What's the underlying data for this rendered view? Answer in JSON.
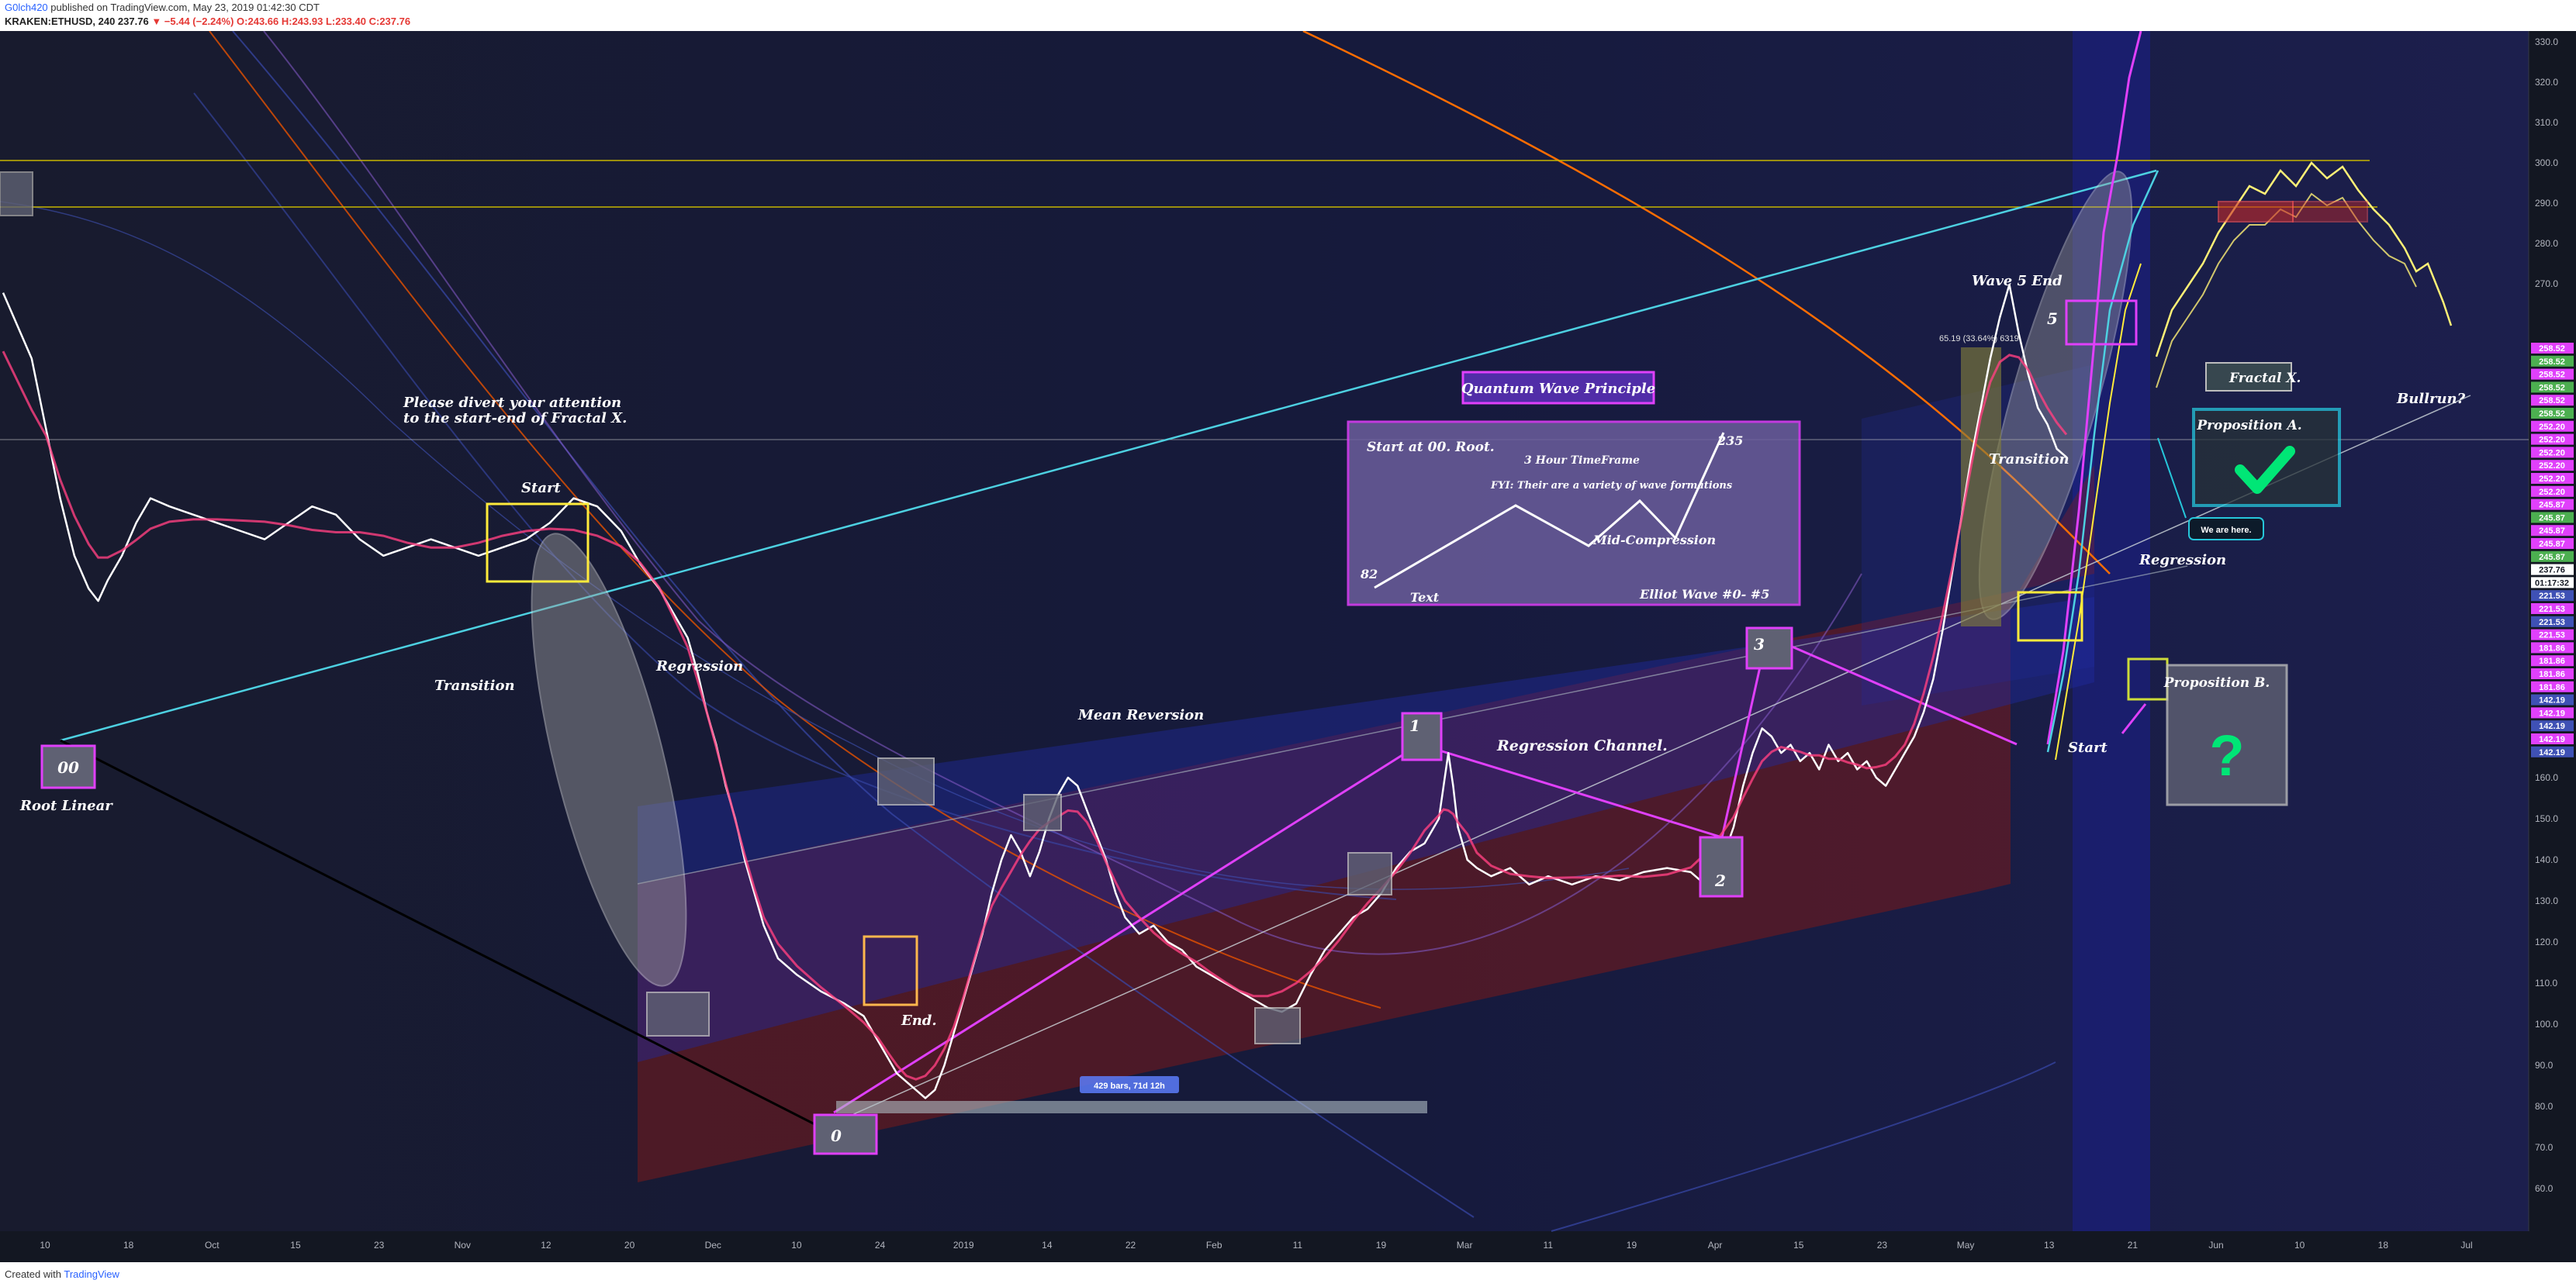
{
  "header": {
    "user": "G0lch420",
    "published": " published on TradingView.com, May 23, 2019 01:42:30 CDT",
    "symbol_line": "KRAKEN:ETHUSD, 240 237.76",
    "change": "▼ −5.44 (−2.24%)",
    "ohlc": "O:243.66 H:243.93 L:233.40 C:237.76"
  },
  "footer": {
    "created": "Created with ",
    "brand": "TradingView"
  },
  "colors": {
    "background": "#131722",
    "price": "#ffffff",
    "magenta": "#e040fb",
    "cyan": "#4dd0e1",
    "yellow": "#ffeb3b",
    "orange": "#ff6d00",
    "blue_channel": "#1a237e",
    "red_channel": "#8b1a1a"
  },
  "chart_data": {
    "type": "line",
    "symbol": "KRAKEN:ETHUSD",
    "timeframe": "240",
    "y_axis": {
      "ticks": [
        330,
        320,
        310,
        300,
        290,
        280,
        270,
        160,
        150,
        140,
        130,
        120,
        110,
        100,
        90,
        80,
        70,
        60
      ],
      "ylim": [
        55,
        335
      ]
    },
    "x_axis": {
      "ticks": [
        "10",
        "18",
        "Oct",
        "15",
        "23",
        "Nov",
        "12",
        "20",
        "Dec",
        "10",
        "24",
        "2019",
        "14",
        "22",
        "Feb",
        "11",
        "19",
        "Mar",
        "11",
        "19",
        "Apr",
        "15",
        "23",
        "May",
        "13",
        "21",
        "Jun",
        "10",
        "18",
        "Jul"
      ]
    },
    "price_labels": [
      {
        "value": "258.52",
        "color": "#e040fb"
      },
      {
        "value": "258.52",
        "color": "#4caf50"
      },
      {
        "value": "258.52",
        "color": "#e040fb"
      },
      {
        "value": "258.52",
        "color": "#4caf50"
      },
      {
        "value": "258.52",
        "color": "#e040fb"
      },
      {
        "value": "258.52",
        "color": "#4caf50"
      },
      {
        "value": "252.20",
        "color": "#e040fb"
      },
      {
        "value": "252.20",
        "color": "#e040fb"
      },
      {
        "value": "252.20",
        "color": "#e040fb"
      },
      {
        "value": "252.20",
        "color": "#e040fb"
      },
      {
        "value": "252.20",
        "color": "#e040fb"
      },
      {
        "value": "252.20",
        "color": "#e040fb"
      },
      {
        "value": "245.87",
        "color": "#e040fb"
      },
      {
        "value": "245.87",
        "color": "#4caf50"
      },
      {
        "value": "245.87",
        "color": "#e040fb"
      },
      {
        "value": "245.87",
        "color": "#e040fb"
      },
      {
        "value": "245.87",
        "color": "#4caf50"
      },
      {
        "value": "237.76",
        "color": "#ffffff"
      },
      {
        "value": "01:17:32",
        "color": "#ffffff"
      },
      {
        "value": "221.53",
        "color": "#3f51b5"
      },
      {
        "value": "221.53",
        "color": "#e040fb"
      },
      {
        "value": "221.53",
        "color": "#3f51b5"
      },
      {
        "value": "221.53",
        "color": "#e040fb"
      },
      {
        "value": "181.86",
        "color": "#e040fb"
      },
      {
        "value": "181.86",
        "color": "#e040fb"
      },
      {
        "value": "181.86",
        "color": "#e040fb"
      },
      {
        "value": "181.86",
        "color": "#e040fb"
      },
      {
        "value": "142.19",
        "color": "#3f51b5"
      },
      {
        "value": "142.19",
        "color": "#e040fb"
      },
      {
        "value": "142.19",
        "color": "#3f51b5"
      },
      {
        "value": "142.19",
        "color": "#e040fb"
      },
      {
        "value": "142.19",
        "color": "#3f51b5"
      }
    ],
    "measure_label": "429 bars, 71d 12h",
    "fib_label": "65.19 (33.64%) 6319",
    "annotations": {
      "attention": [
        "Please divert your attention",
        "to the start-end of Fractal X."
      ],
      "start_top": "Start",
      "transition_left": "Transition",
      "regression_left": "Regression",
      "mean_reversion": "Mean Reversion",
      "root_linear": "Root  Linear",
      "wave00": "00",
      "wave0": "0",
      "wave1": "1",
      "wave2": "2",
      "wave3": "3",
      "wave5": "5",
      "end": "End.",
      "regression_channel": "Regression  Channel.",
      "quantum": "Quantum Wave Principle",
      "box_start": "Start at 00. Root.",
      "box_tf": "3 Hour TimeFrame",
      "box_fyi": "FYI: Their are a variety of wave formations",
      "box_mid": "Mid-Compression",
      "box_82": "82",
      "box_235": "235",
      "box_text": "Text",
      "box_elliot": "Elliot Wave #0- #5",
      "wave5_end": "Wave 5 End",
      "transition_right": "Transition",
      "regression_right": "Regression",
      "start_right": "Start",
      "fractal_x": "Fractal X.",
      "bullrun": "Bullrun?",
      "prop_a": "Proposition A.",
      "prop_b": "Proposition B.",
      "we_are_here": "We are here.",
      "question": "?"
    },
    "series": [
      {
        "type": "price",
        "color": "#ffffff",
        "points": [
          [
            0,
            278
          ],
          [
            6,
            270
          ],
          [
            12,
            262
          ],
          [
            18,
            245
          ],
          [
            24,
            228
          ],
          [
            30,
            214
          ],
          [
            36,
            206
          ],
          [
            40,
            203
          ],
          [
            44,
            208
          ],
          [
            50,
            214
          ],
          [
            56,
            222
          ],
          [
            62,
            228
          ],
          [
            70,
            226
          ],
          [
            80,
            224
          ],
          [
            90,
            222
          ],
          [
            100,
            220
          ],
          [
            110,
            218
          ],
          [
            120,
            222
          ],
          [
            130,
            226
          ],
          [
            140,
            224
          ],
          [
            150,
            218
          ],
          [
            160,
            214
          ],
          [
            170,
            216
          ],
          [
            180,
            218
          ],
          [
            190,
            216
          ],
          [
            200,
            214
          ],
          [
            210,
            216
          ],
          [
            220,
            218
          ],
          [
            230,
            222
          ],
          [
            240,
            228
          ],
          [
            250,
            226
          ],
          [
            260,
            220
          ],
          [
            268,
            212
          ],
          [
            276,
            206
          ],
          [
            282,
            200
          ],
          [
            288,
            194
          ],
          [
            292,
            186
          ],
          [
            296,
            176
          ],
          [
            300,
            168
          ],
          [
            304,
            158
          ],
          [
            308,
            150
          ],
          [
            312,
            140
          ],
          [
            316,
            132
          ],
          [
            320,
            124
          ],
          [
            326,
            116
          ],
          [
            334,
            112
          ],
          [
            344,
            108
          ],
          [
            354,
            105
          ],
          [
            362,
            102
          ],
          [
            368,
            96
          ],
          [
            372,
            92
          ],
          [
            376,
            88
          ],
          [
            380,
            86
          ],
          [
            384,
            84
          ],
          [
            388,
            82
          ],
          [
            392,
            84
          ],
          [
            396,
            90
          ],
          [
            400,
            98
          ],
          [
            404,
            106
          ],
          [
            408,
            114
          ],
          [
            412,
            122
          ],
          [
            416,
            132
          ],
          [
            420,
            140
          ],
          [
            424,
            146
          ],
          [
            428,
            142
          ],
          [
            432,
            136
          ],
          [
            436,
            142
          ],
          [
            440,
            150
          ],
          [
            444,
            156
          ],
          [
            448,
            160
          ],
          [
            452,
            158
          ],
          [
            456,
            152
          ],
          [
            460,
            146
          ],
          [
            464,
            140
          ],
          [
            468,
            132
          ],
          [
            472,
            126
          ],
          [
            478,
            122
          ],
          [
            484,
            124
          ],
          [
            490,
            120
          ],
          [
            496,
            118
          ],
          [
            502,
            114
          ],
          [
            508,
            112
          ],
          [
            514,
            110
          ],
          [
            520,
            108
          ],
          [
            526,
            106
          ],
          [
            532,
            104
          ],
          [
            538,
            103
          ],
          [
            544,
            105
          ],
          [
            550,
            112
          ],
          [
            556,
            118
          ],
          [
            562,
            122
          ],
          [
            568,
            126
          ],
          [
            574,
            128
          ],
          [
            580,
            132
          ],
          [
            586,
            138
          ],
          [
            592,
            142
          ],
          [
            598,
            144
          ],
          [
            604,
            150
          ],
          [
            606,
            158
          ],
          [
            608,
            166
          ],
          [
            610,
            158
          ],
          [
            612,
            148
          ],
          [
            616,
            140
          ],
          [
            620,
            138
          ],
          [
            626,
            136
          ],
          [
            634,
            138
          ],
          [
            642,
            134
          ],
          [
            650,
            136
          ],
          [
            660,
            134
          ],
          [
            670,
            136
          ],
          [
            680,
            135
          ],
          [
            690,
            137
          ],
          [
            700,
            138
          ],
          [
            710,
            137
          ],
          [
            716,
            134
          ],
          [
            722,
            138
          ],
          [
            728,
            148
          ],
          [
            732,
            158
          ],
          [
            736,
            166
          ],
          [
            740,
            172
          ],
          [
            744,
            170
          ],
          [
            748,
            166
          ],
          [
            752,
            168
          ],
          [
            756,
            164
          ],
          [
            760,
            166
          ],
          [
            764,
            162
          ],
          [
            768,
            168
          ],
          [
            772,
            164
          ],
          [
            776,
            166
          ],
          [
            780,
            162
          ],
          [
            784,
            164
          ],
          [
            788,
            160
          ],
          [
            792,
            158
          ],
          [
            796,
            162
          ],
          [
            800,
            166
          ],
          [
            804,
            170
          ],
          [
            808,
            176
          ],
          [
            812,
            184
          ],
          [
            816,
            196
          ],
          [
            820,
            210
          ],
          [
            824,
            224
          ],
          [
            828,
            238
          ],
          [
            832,
            250
          ],
          [
            836,
            262
          ],
          [
            840,
            272
          ],
          [
            844,
            280
          ],
          [
            848,
            268
          ],
          [
            852,
            258
          ],
          [
            856,
            250
          ],
          [
            860,
            246
          ],
          [
            864,
            240
          ],
          [
            868,
            238
          ]
        ]
      }
    ]
  }
}
